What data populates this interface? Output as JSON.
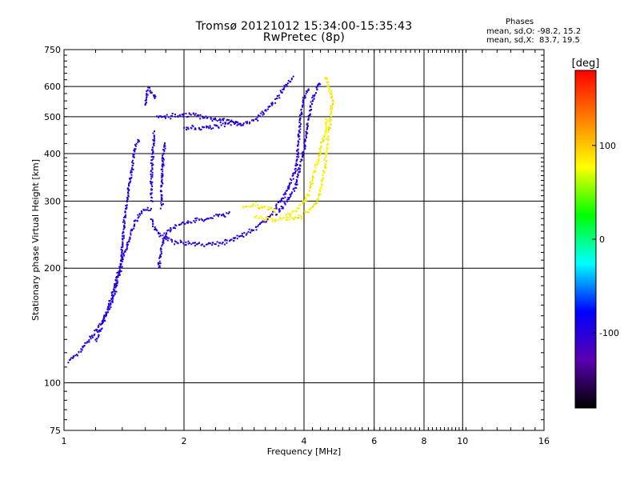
{
  "header": {
    "title": "Tromsø 20121012 15:34:00-15:35:43",
    "subtitle": "RwPretec (8p)",
    "phases_label": "Phases",
    "phase_o": "mean, sd,O: -98.2, 15.2",
    "phase_x": "mean, sd,X:  83.7, 19.5"
  },
  "chart_data": {
    "type": "scatter",
    "title": "Tromsø 20121012 15:34:00-15:35:43",
    "subtitle": "RwPretec (8p)",
    "xlabel": "Frequency [MHz]",
    "ylabel": "Stationary phase Virtual Height [km]",
    "xscale": "log",
    "yscale": "log",
    "xlim": [
      1,
      16
    ],
    "ylim": [
      75,
      750
    ],
    "x_ticks": [
      "1",
      "2",
      "4",
      "6",
      "8",
      "10",
      "16"
    ],
    "y_ticks": [
      "75",
      "100",
      "200",
      "300",
      "400",
      "500",
      "600",
      "750"
    ],
    "grid": true,
    "colorbar": {
      "label": "[deg]",
      "range": [
        -180,
        180
      ],
      "ticks": [
        "100",
        "0",
        "-100"
      ],
      "tick_values": [
        100,
        0,
        -100
      ],
      "colors": [
        "#000000",
        "#5a00b0",
        "#0000ff",
        "#00ffff",
        "#00ff00",
        "#ffff00",
        "#ff8000",
        "#ff0000"
      ]
    },
    "series": [
      {
        "mode": "O",
        "phase_mean": -98.2,
        "phase_sd": 15.2,
        "traces": [
          {
            "points": [
              [
                1.02,
                115
              ],
              [
                1.06,
                118
              ],
              [
                1.1,
                123
              ],
              [
                1.15,
                130
              ],
              [
                1.2,
                138
              ],
              [
                1.25,
                147
              ],
              [
                1.3,
                160
              ],
              [
                1.35,
                180
              ],
              [
                1.38,
                200
              ],
              [
                1.4,
                240
              ],
              [
                1.42,
                280
              ],
              [
                1.45,
                330
              ],
              [
                1.48,
                370
              ],
              [
                1.5,
                420
              ],
              [
                1.55,
                440
              ]
            ]
          },
          {
            "points": [
              [
                1.2,
                130
              ],
              [
                1.25,
                145
              ],
              [
                1.3,
                165
              ],
              [
                1.35,
                190
              ],
              [
                1.4,
                215
              ],
              [
                1.45,
                240
              ],
              [
                1.5,
                265
              ],
              [
                1.55,
                280
              ],
              [
                1.6,
                285
              ],
              [
                1.65,
                290
              ]
            ]
          },
          {
            "points": [
              [
                1.65,
                300
              ],
              [
                1.65,
                350
              ],
              [
                1.66,
                400
              ],
              [
                1.67,
                430
              ],
              [
                1.68,
                460
              ]
            ]
          },
          {
            "points": [
              [
                1.75,
                290
              ],
              [
                1.75,
                330
              ],
              [
                1.76,
                380
              ],
              [
                1.77,
                410
              ],
              [
                1.78,
                430
              ]
            ]
          },
          {
            "points": [
              [
                1.72,
                200
              ],
              [
                1.75,
                230
              ],
              [
                1.8,
                250
              ],
              [
                1.9,
                260
              ],
              [
                2.0,
                265
              ],
              [
                2.2,
                270
              ],
              [
                2.4,
                275
              ],
              [
                2.6,
                280
              ]
            ]
          },
          {
            "points": [
              [
                1.65,
                270
              ],
              [
                1.7,
                250
              ],
              [
                1.8,
                240
              ],
              [
                1.9,
                235
              ],
              [
                2.0,
                233
              ],
              [
                2.2,
                232
              ],
              [
                2.4,
                233
              ],
              [
                2.6,
                238
              ],
              [
                2.8,
                245
              ],
              [
                3.0,
                255
              ],
              [
                3.2,
                270
              ],
              [
                3.4,
                290
              ],
              [
                3.6,
                320
              ],
              [
                3.8,
                360
              ],
              [
                3.85,
                420
              ],
              [
                3.9,
                500
              ],
              [
                4.0,
                570
              ],
              [
                4.1,
                600
              ]
            ]
          },
          {
            "points": [
              [
                1.6,
                540
              ],
              [
                1.6,
                560
              ],
              [
                1.62,
                600
              ],
              [
                1.65,
                580
              ],
              [
                1.7,
                560
              ]
            ]
          },
          {
            "points": [
              [
                1.7,
                500
              ],
              [
                1.8,
                505
              ],
              [
                2.0,
                510
              ],
              [
                2.2,
                505
              ],
              [
                2.4,
                495
              ],
              [
                2.6,
                490
              ],
              [
                2.8,
                485
              ],
              [
                3.0,
                490
              ],
              [
                3.2,
                520
              ],
              [
                3.4,
                560
              ],
              [
                3.6,
                610
              ],
              [
                3.75,
                640
              ]
            ]
          },
          {
            "points": [
              [
                2.0,
                470
              ],
              [
                2.2,
                470
              ],
              [
                2.4,
                475
              ],
              [
                2.6,
                480
              ],
              [
                2.8,
                480
              ]
            ]
          },
          {
            "points": [
              [
                3.4,
                280
              ],
              [
                3.6,
                300
              ],
              [
                3.8,
                330
              ],
              [
                3.9,
                380
              ],
              [
                4.0,
                420
              ],
              [
                4.05,
                460
              ],
              [
                4.1,
                500
              ],
              [
                4.2,
                560
              ],
              [
                4.3,
                600
              ],
              [
                4.35,
                620
              ]
            ]
          }
        ]
      },
      {
        "mode": "X",
        "phase_mean": 83.7,
        "phase_sd": 19.5,
        "traces": [
          {
            "points": [
              [
                3.0,
                275
              ],
              [
                3.3,
                270
              ],
              [
                3.6,
                270
              ],
              [
                3.9,
                275
              ],
              [
                4.1,
                285
              ],
              [
                4.3,
                300
              ],
              [
                4.4,
                330
              ],
              [
                4.5,
                370
              ],
              [
                4.55,
                420
              ],
              [
                4.6,
                470
              ],
              [
                4.65,
                500
              ],
              [
                4.7,
                550
              ],
              [
                4.6,
                600
              ],
              [
                4.5,
                640
              ]
            ]
          },
          {
            "points": [
              [
                3.6,
                278
              ],
              [
                3.8,
                285
              ],
              [
                4.0,
                300
              ],
              [
                4.1,
                320
              ],
              [
                4.2,
                350
              ],
              [
                4.3,
                380
              ],
              [
                4.4,
                420
              ],
              [
                4.5,
                460
              ],
              [
                4.55,
                500
              ]
            ]
          },
          {
            "points": [
              [
                2.8,
                290
              ],
              [
                3.0,
                295
              ],
              [
                3.2,
                290
              ],
              [
                3.4,
                285
              ]
            ]
          }
        ]
      }
    ]
  }
}
